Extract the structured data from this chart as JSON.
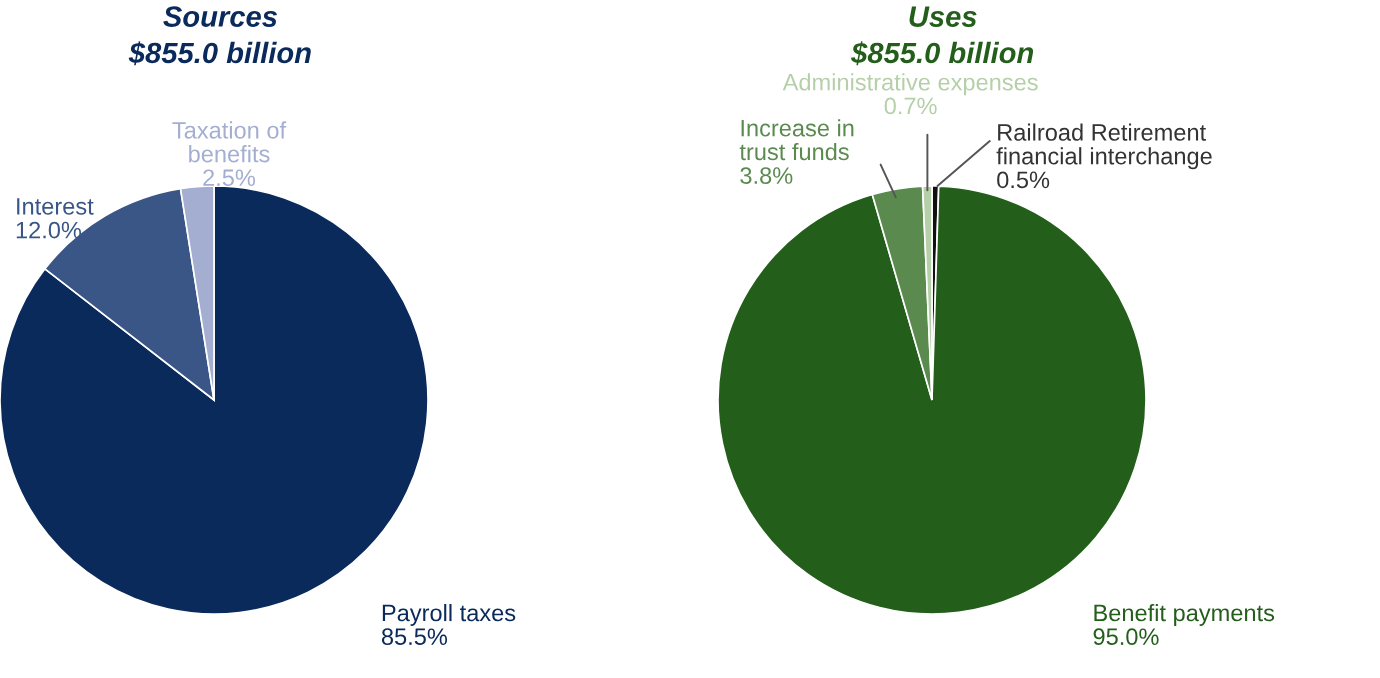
{
  "chart_data": [
    {
      "type": "pie",
      "title": "Sources",
      "subtitle": "$855.0 billion",
      "categories": [
        "Payroll taxes",
        "Interest",
        "Taxation of\nbenefits"
      ],
      "values": [
        85.5,
        12.0,
        2.5
      ],
      "value_labels": [
        "85.5%",
        "12.0%",
        "2.5%"
      ],
      "colors": [
        "#0b2a5c",
        "#3a5687",
        "#a3aed0"
      ]
    },
    {
      "type": "pie",
      "title": "Uses",
      "subtitle": "$855.0 billion",
      "categories": [
        "Railroad Retirement\nfinancial interchange",
        "Benefit payments",
        "Increase in\ntrust funds",
        "Administrative expenses"
      ],
      "values": [
        0.5,
        95.0,
        3.8,
        0.7
      ],
      "value_labels": [
        "0.5%",
        "95.0%",
        "3.8%",
        "0.7%"
      ],
      "colors": [
        "#111111",
        "#245e1b",
        "#5a8a4e",
        "#b5cfa8"
      ]
    }
  ]
}
